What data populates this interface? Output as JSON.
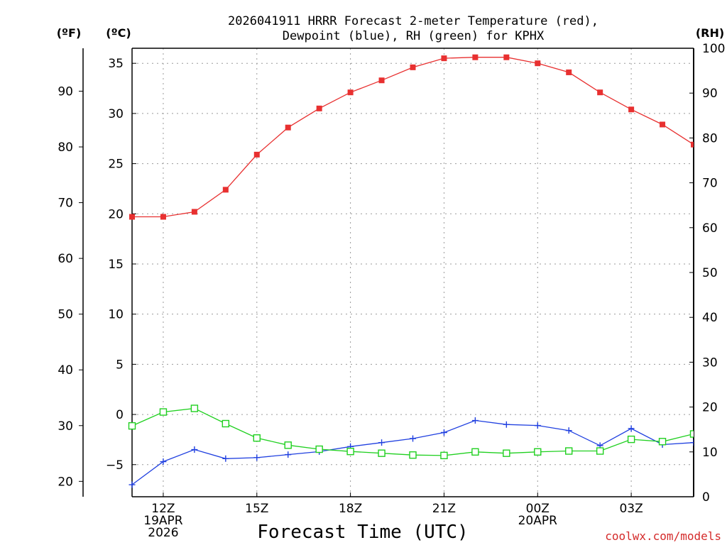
{
  "chart_data": {
    "type": "line",
    "title_line1": "2026041911 HRRR Forecast 2-meter Temperature (red),",
    "title_line2": "Dewpoint (blue), RH (green) for KPHX",
    "xlabel": "Forecast Time (UTC)",
    "credit": "coolwx.com/models",
    "unit_labels": {
      "fahrenheit": "(ºF)",
      "celsius": "(ºC)",
      "rh": "(RH)"
    },
    "x_hours": [
      0,
      1,
      2,
      3,
      4,
      5,
      6,
      7,
      8,
      9,
      10,
      11,
      12,
      13,
      14,
      15,
      16,
      17,
      18
    ],
    "x_ticks": [
      {
        "hour": 1,
        "lines": [
          "12Z",
          "19APR",
          "2026"
        ]
      },
      {
        "hour": 4,
        "lines": [
          "15Z"
        ]
      },
      {
        "hour": 7,
        "lines": [
          "18Z"
        ]
      },
      {
        "hour": 10,
        "lines": [
          "21Z"
        ]
      },
      {
        "hour": 13,
        "lines": [
          "00Z",
          "20APR"
        ]
      },
      {
        "hour": 16,
        "lines": [
          "03Z"
        ]
      }
    ],
    "celsius_axis": {
      "min": -8.2,
      "max": 36.5,
      "ticks": [
        "35",
        "30",
        "25",
        "20",
        "15",
        "10",
        "5",
        "0",
        "−5"
      ]
    },
    "fahrenheit_axis": {
      "ticks": [
        "90",
        "80",
        "70",
        "60",
        "50",
        "40",
        "30",
        "20"
      ]
    },
    "rh_axis": {
      "min": 0,
      "max": 100,
      "ticks": [
        "100",
        "90",
        "80",
        "70",
        "60",
        "50",
        "40",
        "30",
        "20",
        "10",
        "0"
      ]
    },
    "series": [
      {
        "name": "2-meter Temperature",
        "unit": "C",
        "color": "#e83030",
        "marker": "filled-square",
        "values": [
          19.7,
          19.7,
          20.2,
          22.4,
          25.9,
          28.6,
          30.5,
          32.1,
          33.3,
          34.6,
          35.5,
          35.6,
          35.6,
          35.0,
          34.1,
          32.1,
          30.4,
          28.9,
          26.9
        ]
      },
      {
        "name": "Dewpoint",
        "unit": "C",
        "color": "#2040e0",
        "marker": "plus",
        "values": [
          -7.0,
          -4.7,
          -3.5,
          -4.4,
          -4.3,
          -4.0,
          -3.7,
          -3.2,
          -2.8,
          -2.4,
          -1.8,
          -0.6,
          -1.0,
          -1.1,
          -1.6,
          -3.1,
          -1.4,
          -3.0,
          -2.8
        ]
      },
      {
        "name": "RH",
        "unit": "%",
        "color": "#20d020",
        "marker": "open-square",
        "values": [
          15.8,
          18.9,
          19.7,
          16.3,
          13.1,
          11.5,
          10.6,
          10.1,
          9.7,
          9.3,
          9.2,
          10.0,
          9.7,
          10.0,
          10.2,
          10.2,
          12.8,
          12.3,
          14.0
        ]
      }
    ]
  }
}
